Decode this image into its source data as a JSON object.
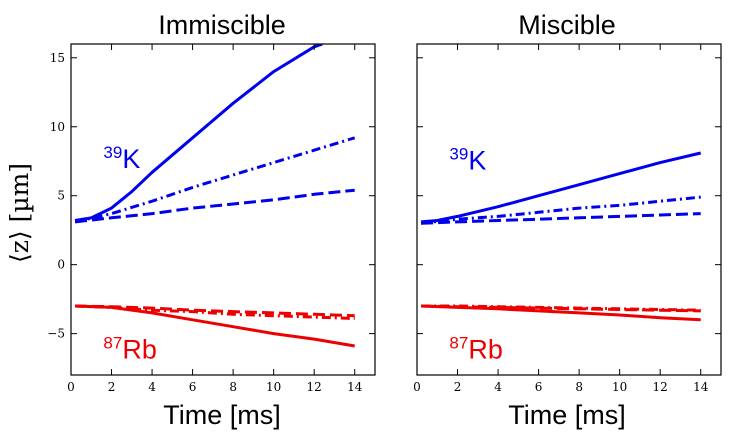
{
  "figure": {
    "ylabel": "⟨z⟩ [µm]",
    "colors": {
      "K": "#0000ee",
      "Rb": "#ee0000"
    }
  },
  "chart_data": [
    {
      "type": "line",
      "title": "Immiscible",
      "xlabel": "Time [ms]",
      "ylabel": "⟨z⟩ [µm]",
      "xlim": [
        0,
        15
      ],
      "ylim": [
        -8,
        16
      ],
      "xticks": [
        "0",
        "2",
        "4",
        "6",
        "8",
        "10",
        "12",
        "14"
      ],
      "yticks": [
        "15",
        "10",
        "5",
        "0",
        "−5"
      ],
      "ytick_values": [
        15,
        10,
        5,
        0,
        -5
      ],
      "xtick_values": [
        0,
        2,
        4,
        6,
        8,
        10,
        12,
        14
      ],
      "annotations": [
        {
          "isotope": "39",
          "element": "K",
          "color": "#0000ee",
          "x": 1.6,
          "y": 7.0
        },
        {
          "isotope": "87",
          "element": "Rb",
          "color": "#ee0000",
          "x": 1.6,
          "y": -6.8
        }
      ],
      "series": [
        {
          "species": "K",
          "style": "solid",
          "color": "#0000ee",
          "x": [
            0.2,
            1,
            2,
            3,
            4,
            6,
            8,
            10,
            12,
            12.4
          ],
          "y": [
            3.2,
            3.4,
            4.1,
            5.3,
            6.7,
            9.2,
            11.7,
            14.0,
            15.8,
            16.0
          ]
        },
        {
          "species": "K",
          "style": "dashdot",
          "color": "#0000ee",
          "x": [
            0.2,
            2,
            4,
            6,
            8,
            10,
            12,
            14
          ],
          "y": [
            3.1,
            3.7,
            4.6,
            5.6,
            6.5,
            7.4,
            8.3,
            9.2
          ]
        },
        {
          "species": "K",
          "style": "dashed",
          "color": "#0000ee",
          "x": [
            0.2,
            2,
            4,
            6,
            8,
            10,
            12,
            14
          ],
          "y": [
            3.1,
            3.4,
            3.7,
            4.1,
            4.4,
            4.7,
            5.1,
            5.4
          ]
        },
        {
          "species": "Rb",
          "style": "solid",
          "color": "#ee0000",
          "x": [
            0.2,
            2,
            4,
            6,
            8,
            10,
            12,
            14
          ],
          "y": [
            -3.0,
            -3.1,
            -3.5,
            -4.0,
            -4.5,
            -5.0,
            -5.4,
            -5.9
          ]
        },
        {
          "species": "Rb",
          "style": "dashdot",
          "color": "#ee0000",
          "x": [
            0.2,
            2,
            4,
            6,
            8,
            10,
            12,
            14
          ],
          "y": [
            -3.0,
            -3.1,
            -3.3,
            -3.4,
            -3.6,
            -3.7,
            -3.8,
            -3.9
          ]
        },
        {
          "species": "Rb",
          "style": "dashed",
          "color": "#ee0000",
          "x": [
            0.2,
            2,
            4,
            6,
            8,
            10,
            12,
            14
          ],
          "y": [
            -3.0,
            -3.05,
            -3.15,
            -3.3,
            -3.4,
            -3.5,
            -3.6,
            -3.7
          ]
        }
      ]
    },
    {
      "type": "line",
      "title": "Miscible",
      "xlabel": "Time [ms]",
      "ylabel": "",
      "xlim": [
        0,
        15
      ],
      "ylim": [
        -8,
        16
      ],
      "xticks": [
        "0",
        "2",
        "4",
        "6",
        "8",
        "10",
        "12",
        "14"
      ],
      "yticks": [],
      "ytick_values": [
        15,
        10,
        5,
        0,
        -5
      ],
      "xtick_values": [
        0,
        2,
        4,
        6,
        8,
        10,
        12,
        14
      ],
      "annotations": [
        {
          "isotope": "39",
          "element": "K",
          "color": "#0000ee",
          "x": 1.6,
          "y": 6.9
        },
        {
          "isotope": "87",
          "element": "Rb",
          "color": "#ee0000",
          "x": 1.6,
          "y": -6.8
        }
      ],
      "series": [
        {
          "species": "K",
          "style": "solid",
          "color": "#0000ee",
          "x": [
            0.2,
            1,
            2,
            4,
            6,
            8,
            10,
            12,
            14
          ],
          "y": [
            3.1,
            3.2,
            3.5,
            4.2,
            5.0,
            5.8,
            6.6,
            7.4,
            8.1
          ]
        },
        {
          "species": "K",
          "style": "dashdot",
          "color": "#0000ee",
          "x": [
            0.2,
            2,
            4,
            6,
            8,
            10,
            12,
            14
          ],
          "y": [
            3.0,
            3.3,
            3.5,
            3.8,
            4.1,
            4.3,
            4.6,
            4.9
          ]
        },
        {
          "species": "K",
          "style": "dashed",
          "color": "#0000ee",
          "x": [
            0.2,
            2,
            4,
            6,
            8,
            10,
            12,
            14
          ],
          "y": [
            3.0,
            3.1,
            3.2,
            3.3,
            3.4,
            3.5,
            3.6,
            3.7
          ]
        },
        {
          "species": "Rb",
          "style": "solid",
          "color": "#ee0000",
          "x": [
            0.2,
            2,
            4,
            6,
            8,
            10,
            12,
            14
          ],
          "y": [
            -3.0,
            -3.1,
            -3.2,
            -3.35,
            -3.5,
            -3.65,
            -3.85,
            -4.0
          ]
        },
        {
          "species": "Rb",
          "style": "dashdot",
          "color": "#ee0000",
          "x": [
            0.2,
            2,
            4,
            6,
            8,
            10,
            12,
            14
          ],
          "y": [
            -3.0,
            -3.0,
            -3.05,
            -3.1,
            -3.15,
            -3.2,
            -3.25,
            -3.3
          ]
        },
        {
          "species": "Rb",
          "style": "dashed",
          "color": "#ee0000",
          "x": [
            0.2,
            2,
            4,
            6,
            8,
            10,
            12,
            14
          ],
          "y": [
            -3.0,
            -3.05,
            -3.1,
            -3.15,
            -3.2,
            -3.25,
            -3.3,
            -3.35
          ]
        }
      ]
    }
  ]
}
